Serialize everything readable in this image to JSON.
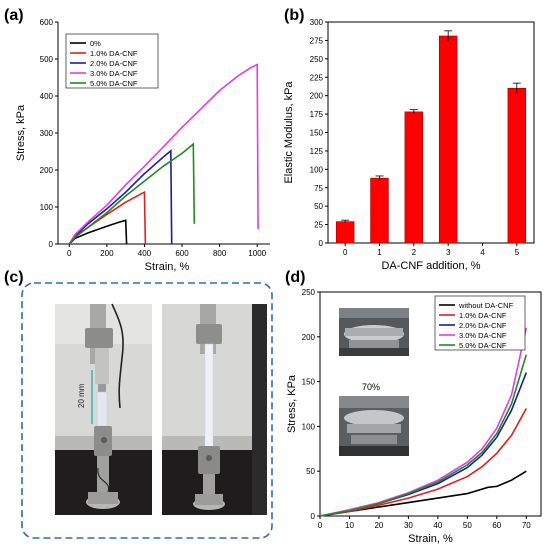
{
  "panels": {
    "a": "(a)",
    "b": "(b)",
    "c": "(c)",
    "d": "(d)"
  },
  "photo_c": {
    "scale_label": "20 mm"
  },
  "inset_d": {
    "label": "70%"
  },
  "chart_data": [
    {
      "panel": "a",
      "type": "line",
      "xlabel": "Strain, %",
      "ylabel": "Stress, kPa",
      "xlim": [
        -60,
        1100
      ],
      "ylim": [
        0,
        600
      ],
      "xticks": [
        0,
        200,
        400,
        600,
        800,
        1000
      ],
      "yticks": [
        0,
        100,
        200,
        300,
        400,
        500,
        600
      ],
      "legend_position": "top-left",
      "series": [
        {
          "name": "0%",
          "color": "#000000",
          "points": [
            [
              0,
              0
            ],
            [
              30,
              15
            ],
            [
              100,
              30
            ],
            [
              200,
              48
            ],
            [
              260,
              58
            ],
            [
              300,
              64
            ],
            [
              305,
              0
            ]
          ]
        },
        {
          "name": "1.0% DA-CNF",
          "color": "#e02020",
          "points": [
            [
              0,
              0
            ],
            [
              30,
              20
            ],
            [
              100,
              45
            ],
            [
              200,
              80
            ],
            [
              300,
              113
            ],
            [
              380,
              135
            ],
            [
              400,
              140
            ],
            [
              405,
              0
            ]
          ]
        },
        {
          "name": "2.0% DA-CNF",
          "color": "#1a1aa8",
          "points": [
            [
              0,
              0
            ],
            [
              30,
              22
            ],
            [
              100,
              55
            ],
            [
              200,
              95
            ],
            [
              300,
              140
            ],
            [
              400,
              190
            ],
            [
              500,
              235
            ],
            [
              540,
              252
            ],
            [
              545,
              0
            ]
          ]
        },
        {
          "name": "3.0% DA-CNF",
          "color": "#e040e0",
          "points": [
            [
              0,
              0
            ],
            [
              30,
              25
            ],
            [
              100,
              60
            ],
            [
              200,
              105
            ],
            [
              300,
              160
            ],
            [
              400,
              210
            ],
            [
              500,
              262
            ],
            [
              600,
              315
            ],
            [
              700,
              365
            ],
            [
              800,
              415
            ],
            [
              900,
              455
            ],
            [
              960,
              475
            ],
            [
              1000,
              485
            ],
            [
              1005,
              40
            ]
          ]
        },
        {
          "name": "5.0% DA-CNF",
          "color": "#208a20",
          "points": [
            [
              0,
              0
            ],
            [
              30,
              18
            ],
            [
              100,
              45
            ],
            [
              200,
              85
            ],
            [
              300,
              130
            ],
            [
              400,
              170
            ],
            [
              500,
              210
            ],
            [
              600,
              245
            ],
            [
              660,
              270
            ],
            [
              665,
              55
            ]
          ]
        }
      ]
    },
    {
      "panel": "b",
      "type": "bar",
      "xlabel": "DA-CNF addition, %",
      "ylabel": "Elastic Modulus, kPa",
      "xlim": [
        -0.5,
        5.5
      ],
      "ylim": [
        0,
        300
      ],
      "xticks": [
        0,
        1,
        2,
        3,
        4,
        5
      ],
      "yticks": [
        0,
        25,
        50,
        75,
        100,
        125,
        150,
        175,
        200,
        225,
        250,
        275,
        300
      ],
      "bar_color": "#ff0000",
      "x": [
        0,
        1,
        2,
        3,
        5
      ],
      "values": [
        29,
        88,
        178,
        281,
        210
      ],
      "errors": [
        2,
        3,
        3,
        7,
        7
      ]
    },
    {
      "panel": "d",
      "type": "line",
      "xlabel": "Strain, %",
      "ylabel": "Stress, KPa",
      "xlim": [
        0,
        75
      ],
      "ylim": [
        0,
        250
      ],
      "xticks": [
        0,
        10,
        20,
        30,
        40,
        50,
        60,
        70
      ],
      "yticks": [
        0,
        50,
        100,
        150,
        200,
        250
      ],
      "legend_position": "top-right",
      "series": [
        {
          "name": "without DA-CNF",
          "color": "#000000",
          "points": [
            [
              0,
              0
            ],
            [
              10,
              5
            ],
            [
              20,
              10
            ],
            [
              30,
              15
            ],
            [
              40,
              20
            ],
            [
              50,
              25
            ],
            [
              57,
              32
            ],
            [
              60,
              33
            ],
            [
              65,
              40
            ],
            [
              70,
              50
            ]
          ]
        },
        {
          "name": "1.0% DA-CNF",
          "color": "#e02020",
          "points": [
            [
              0,
              0
            ],
            [
              10,
              5
            ],
            [
              20,
              12
            ],
            [
              30,
              20
            ],
            [
              40,
              30
            ],
            [
              50,
              44
            ],
            [
              55,
              55
            ],
            [
              60,
              70
            ],
            [
              65,
              90
            ],
            [
              70,
              120
            ]
          ]
        },
        {
          "name": "2.0% DA-CNF",
          "color": "#1a1aa8",
          "points": [
            [
              0,
              0
            ],
            [
              10,
              6
            ],
            [
              20,
              14
            ],
            [
              30,
              24
            ],
            [
              40,
              36
            ],
            [
              50,
              54
            ],
            [
              55,
              68
            ],
            [
              60,
              88
            ],
            [
              65,
              118
            ],
            [
              70,
              160
            ]
          ]
        },
        {
          "name": "3.0% DA-CNF",
          "color": "#e040e0",
          "points": [
            [
              0,
              0
            ],
            [
              10,
              7
            ],
            [
              20,
              15
            ],
            [
              30,
              26
            ],
            [
              40,
              40
            ],
            [
              50,
              60
            ],
            [
              55,
              75
            ],
            [
              60,
              98
            ],
            [
              65,
              135
            ],
            [
              70,
              210
            ]
          ]
        },
        {
          "name": "5.0% DA-CNF",
          "color": "#208a20",
          "points": [
            [
              0,
              0
            ],
            [
              10,
              6
            ],
            [
              20,
              14
            ],
            [
              30,
              25
            ],
            [
              40,
              38
            ],
            [
              50,
              57
            ],
            [
              55,
              71
            ],
            [
              60,
              92
            ],
            [
              65,
              125
            ],
            [
              70,
              180
            ]
          ]
        }
      ]
    }
  ]
}
